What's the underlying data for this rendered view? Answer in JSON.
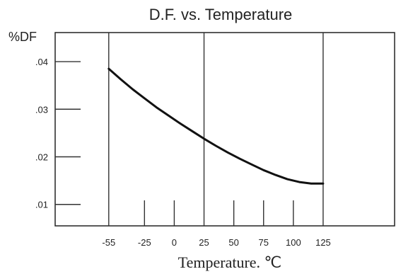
{
  "chart_data": {
    "type": "line",
    "title": "D.F. vs. Temperature",
    "ylabel": "%DF",
    "xlabel": "Temperature. ℃",
    "xlim": [
      -100,
      185
    ],
    "ylim": [
      0.0055,
      0.0461
    ],
    "x_ticks": [
      -55,
      -25,
      0,
      25,
      50,
      75,
      100,
      125
    ],
    "x_tick_labels": [
      "-55",
      "-25",
      "0",
      "25",
      "50",
      "75",
      "100",
      "125"
    ],
    "y_ticks": [
      0.01,
      0.02,
      0.03,
      0.04
    ],
    "y_tick_labels": [
      ".01",
      ".02",
      ".03",
      ".04"
    ],
    "vertical_lines": [
      -55,
      25,
      125
    ],
    "series": [
      {
        "x": [
          -55,
          -45,
          -35,
          -25,
          -15,
          -5,
          5,
          15,
          25,
          35,
          45,
          55,
          65,
          75,
          85,
          95,
          105,
          115,
          125
        ],
        "y": [
          0.0385,
          0.0363,
          0.0342,
          0.0323,
          0.0304,
          0.0287,
          0.027,
          0.0254,
          0.0238,
          0.0223,
          0.0209,
          0.0196,
          0.0184,
          0.0172,
          0.0162,
          0.0153,
          0.0147,
          0.0144,
          0.0144
        ]
      }
    ]
  }
}
